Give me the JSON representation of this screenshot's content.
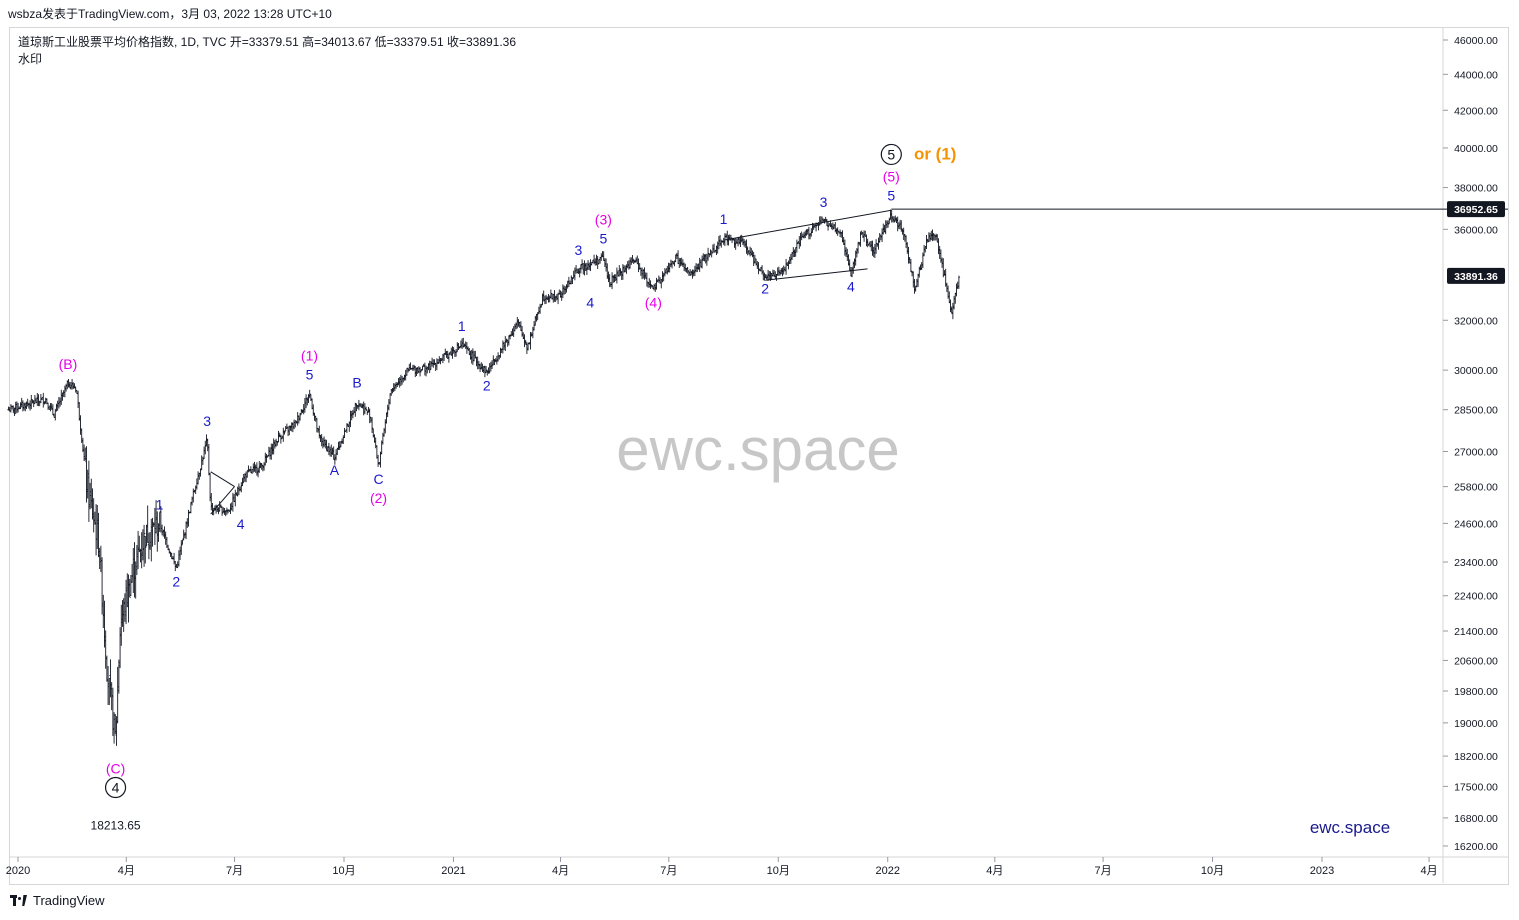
{
  "header": {
    "publisher_line": "wsbza发表于TradingView.com，3月 03, 2022 13:28 UTC+10"
  },
  "legend": {
    "symbol_line": "道琼斯工业股票平均价格指数, 1D, TVC  开=33379.51  高=34013.67  低=33379.51  收=33891.36",
    "watermark_label": "水印"
  },
  "footer": {
    "brand": "TradingView"
  },
  "colors": {
    "bars": "#131722",
    "wave_blue": "#1a1acd",
    "wave_magenta": "#e600e6",
    "wave_orange": "#f59300",
    "price_tag_bg": "#131722"
  },
  "chart_data": {
    "type": "ohlc",
    "title": "道琼斯工业股票平均价格指数",
    "interval": "1D",
    "source": "TVC",
    "ohlc_last": {
      "open": 33379.51,
      "high": 34013.67,
      "low": 33379.51,
      "close": 33891.36
    },
    "y_axis": {
      "scale": "log",
      "range": [
        15900,
        46800
      ],
      "ticks": [
        46000,
        44000,
        42000,
        40000,
        38000,
        36000,
        32000,
        30000,
        28500,
        27000,
        25800,
        24600,
        23400,
        22400,
        21400,
        20600,
        19800,
        19000,
        18200,
        17500,
        16800,
        16200
      ],
      "tick_labels": [
        "46000.00",
        "44000.00",
        "42000.00",
        "40000.00",
        "38000.00",
        "36000.00",
        "32000.00",
        "30000.00",
        "28500.00",
        "27000.00",
        "25800.00",
        "24600.00",
        "23400.00",
        "22400.00",
        "21400.00",
        "20600.00",
        "19800.00",
        "19000.00",
        "18200.00",
        "17500.00",
        "16800.00",
        "16200.00"
      ]
    },
    "x_axis": {
      "ticks": [
        {
          "date": "2020-01-01",
          "label": "2020"
        },
        {
          "date": "2020-04-01",
          "label": "4月"
        },
        {
          "date": "2020-07-01",
          "label": "7月"
        },
        {
          "date": "2020-10-01",
          "label": "10月"
        },
        {
          "date": "2021-01-01",
          "label": "2021"
        },
        {
          "date": "2021-04-01",
          "label": "4月"
        },
        {
          "date": "2021-07-01",
          "label": "7月"
        },
        {
          "date": "2021-10-01",
          "label": "10月"
        },
        {
          "date": "2022-01-01",
          "label": "2022"
        },
        {
          "date": "2022-04-01",
          "label": "4月"
        },
        {
          "date": "2022-07-01",
          "label": "7月"
        },
        {
          "date": "2022-10-01",
          "label": "10月"
        },
        {
          "date": "2023-01-01",
          "label": "2023"
        },
        {
          "date": "2023-04-01",
          "label": "4月"
        }
      ]
    },
    "series_path": [
      [
        "2019-12-24",
        28500
      ],
      [
        "2020-01-08",
        28700
      ],
      [
        "2020-01-24",
        28900
      ],
      [
        "2020-01-31",
        28300
      ],
      [
        "2020-02-12",
        29500
      ],
      [
        "2020-02-19",
        29300
      ],
      [
        "2020-02-28",
        25800
      ],
      [
        "2020-03-09",
        24000
      ],
      [
        "2020-03-16",
        20300
      ],
      [
        "2020-03-23",
        18600
      ],
      [
        "2020-03-27",
        21600
      ],
      [
        "2020-04-08",
        23300
      ],
      [
        "2020-04-17",
        24200
      ],
      [
        "2020-04-29",
        24600
      ],
      [
        "2020-05-13",
        23200
      ],
      [
        "2020-05-27",
        25500
      ],
      [
        "2020-06-08",
        27400
      ],
      [
        "2020-06-11",
        25100
      ],
      [
        "2020-06-26",
        25000
      ],
      [
        "2020-07-10",
        26200
      ],
      [
        "2020-07-24",
        26500
      ],
      [
        "2020-08-07",
        27500
      ],
      [
        "2020-08-21",
        28000
      ],
      [
        "2020-09-02",
        29100
      ],
      [
        "2020-09-10",
        27500
      ],
      [
        "2020-09-23",
        26800
      ],
      [
        "2020-10-12",
        28800
      ],
      [
        "2020-10-23",
        28300
      ],
      [
        "2020-10-30",
        26500
      ],
      [
        "2020-11-09",
        29200
      ],
      [
        "2020-11-24",
        30000
      ],
      [
        "2020-12-11",
        30100
      ],
      [
        "2021-01-08",
        31000
      ],
      [
        "2021-01-29",
        29900
      ],
      [
        "2021-02-24",
        31900
      ],
      [
        "2021-03-04",
        30900
      ],
      [
        "2021-03-17",
        33000
      ],
      [
        "2021-03-31",
        33000
      ],
      [
        "2021-04-16",
        34200
      ],
      [
        "2021-05-07",
        34700
      ],
      [
        "2021-05-12",
        33600
      ],
      [
        "2021-06-02",
        34600
      ],
      [
        "2021-06-18",
        33300
      ],
      [
        "2021-07-07",
        34700
      ],
      [
        "2021-07-19",
        33900
      ],
      [
        "2021-08-16",
        35600
      ],
      [
        "2021-09-01",
        35400
      ],
      [
        "2021-09-20",
        33900
      ],
      [
        "2021-10-04",
        34000
      ],
      [
        "2021-10-22",
        35700
      ],
      [
        "2021-11-08",
        36400
      ],
      [
        "2021-11-23",
        35800
      ],
      [
        "2021-12-01",
        34000
      ],
      [
        "2021-12-10",
        35900
      ],
      [
        "2021-12-20",
        35000
      ],
      [
        "2022-01-04",
        36700
      ],
      [
        "2022-01-14",
        35900
      ],
      [
        "2022-01-24",
        33300
      ],
      [
        "2022-02-03",
        35500
      ],
      [
        "2022-02-10",
        35800
      ],
      [
        "2022-02-24",
        32300
      ],
      [
        "2022-03-02",
        33900
      ]
    ],
    "horizontal_level": {
      "price": 36952.65,
      "label": "36952.65"
    },
    "last_price": {
      "price": 33891.36,
      "label": "33891.36"
    },
    "low_annotation": {
      "price": 18213.65,
      "label": "18213.65"
    },
    "watermark": "ewc.space",
    "signature": "ewc.space",
    "wave_labels": [
      {
        "text": "(B)",
        "date": "2020-02-12",
        "price": 29500,
        "color": "magenta",
        "pos": "above"
      },
      {
        "text": "(C)",
        "date": "2020-03-23",
        "price": 18213.65,
        "color": "magenta",
        "pos": "below"
      },
      {
        "text": "4",
        "date": "2020-03-23",
        "price": 18213.65,
        "color": "black",
        "pos": "below2",
        "circled": true
      },
      {
        "text": "1",
        "date": "2020-04-29",
        "price": 24600,
        "color": "blue",
        "pos": "above"
      },
      {
        "text": "2",
        "date": "2020-05-13",
        "price": 23200,
        "color": "blue",
        "pos": "below"
      },
      {
        "text": "3",
        "date": "2020-06-08",
        "price": 27400,
        "color": "blue",
        "pos": "above"
      },
      {
        "text": "4",
        "date": "2020-06-26",
        "price": 25000,
        "color": "blue",
        "pos": "right"
      },
      {
        "text": "5",
        "date": "2020-09-02",
        "price": 29100,
        "color": "blue",
        "pos": "above"
      },
      {
        "text": "(1)",
        "date": "2020-09-02",
        "price": 29100,
        "color": "magenta",
        "pos": "above2"
      },
      {
        "text": "A",
        "date": "2020-09-23",
        "price": 26800,
        "color": "blue",
        "pos": "below"
      },
      {
        "text": "B",
        "date": "2020-10-12",
        "price": 28800,
        "color": "blue",
        "pos": "above"
      },
      {
        "text": "C",
        "date": "2020-10-30",
        "price": 26500,
        "color": "blue",
        "pos": "below"
      },
      {
        "text": "(2)",
        "date": "2020-10-30",
        "price": 26500,
        "color": "magenta",
        "pos": "below2"
      },
      {
        "text": "1",
        "date": "2021-01-08",
        "price": 31000,
        "color": "blue",
        "pos": "above"
      },
      {
        "text": "2",
        "date": "2021-01-29",
        "price": 29900,
        "color": "blue",
        "pos": "below"
      },
      {
        "text": "3",
        "date": "2021-04-16",
        "price": 34200,
        "color": "blue",
        "pos": "above"
      },
      {
        "text": "4",
        "date": "2021-04-26",
        "price": 33300,
        "color": "blue",
        "pos": "below"
      },
      {
        "text": "5",
        "date": "2021-05-07",
        "price": 34700,
        "color": "blue",
        "pos": "above"
      },
      {
        "text": "(3)",
        "date": "2021-05-07",
        "price": 34700,
        "color": "magenta",
        "pos": "above2"
      },
      {
        "text": "(4)",
        "date": "2021-06-18",
        "price": 33300,
        "color": "magenta",
        "pos": "below"
      },
      {
        "text": "1",
        "date": "2021-08-16",
        "price": 35600,
        "color": "blue",
        "pos": "above"
      },
      {
        "text": "2",
        "date": "2021-09-20",
        "price": 33900,
        "color": "blue",
        "pos": "below"
      },
      {
        "text": "3",
        "date": "2021-11-08",
        "price": 36400,
        "color": "blue",
        "pos": "above"
      },
      {
        "text": "4",
        "date": "2021-12-01",
        "price": 34000,
        "color": "blue",
        "pos": "below"
      },
      {
        "text": "5",
        "date": "2022-01-04",
        "price": 36700,
        "color": "blue",
        "pos": "above"
      },
      {
        "text": "(5)",
        "date": "2022-01-04",
        "price": 36700,
        "color": "magenta",
        "pos": "above2"
      },
      {
        "text": "5",
        "date": "2022-01-04",
        "price": 36700,
        "color": "black",
        "pos": "above3",
        "circled": true
      },
      {
        "text": "or (1)",
        "date": "2022-01-18",
        "price": 36700,
        "color": "orange",
        "pos": "above3"
      }
    ],
    "trend_lines": [
      {
        "from": [
          "2020-06-11",
          26300
        ],
        "to": [
          "2020-07-01",
          25800
        ]
      },
      {
        "from": [
          "2020-06-11",
          24900
        ],
        "to": [
          "2020-07-01",
          25800
        ]
      },
      {
        "from": [
          "2021-08-16",
          35500
        ],
        "to": [
          "2022-01-04",
          36900
        ]
      },
      {
        "from": [
          "2021-09-20",
          33700
        ],
        "to": [
          "2021-12-15",
          34200
        ]
      }
    ]
  }
}
